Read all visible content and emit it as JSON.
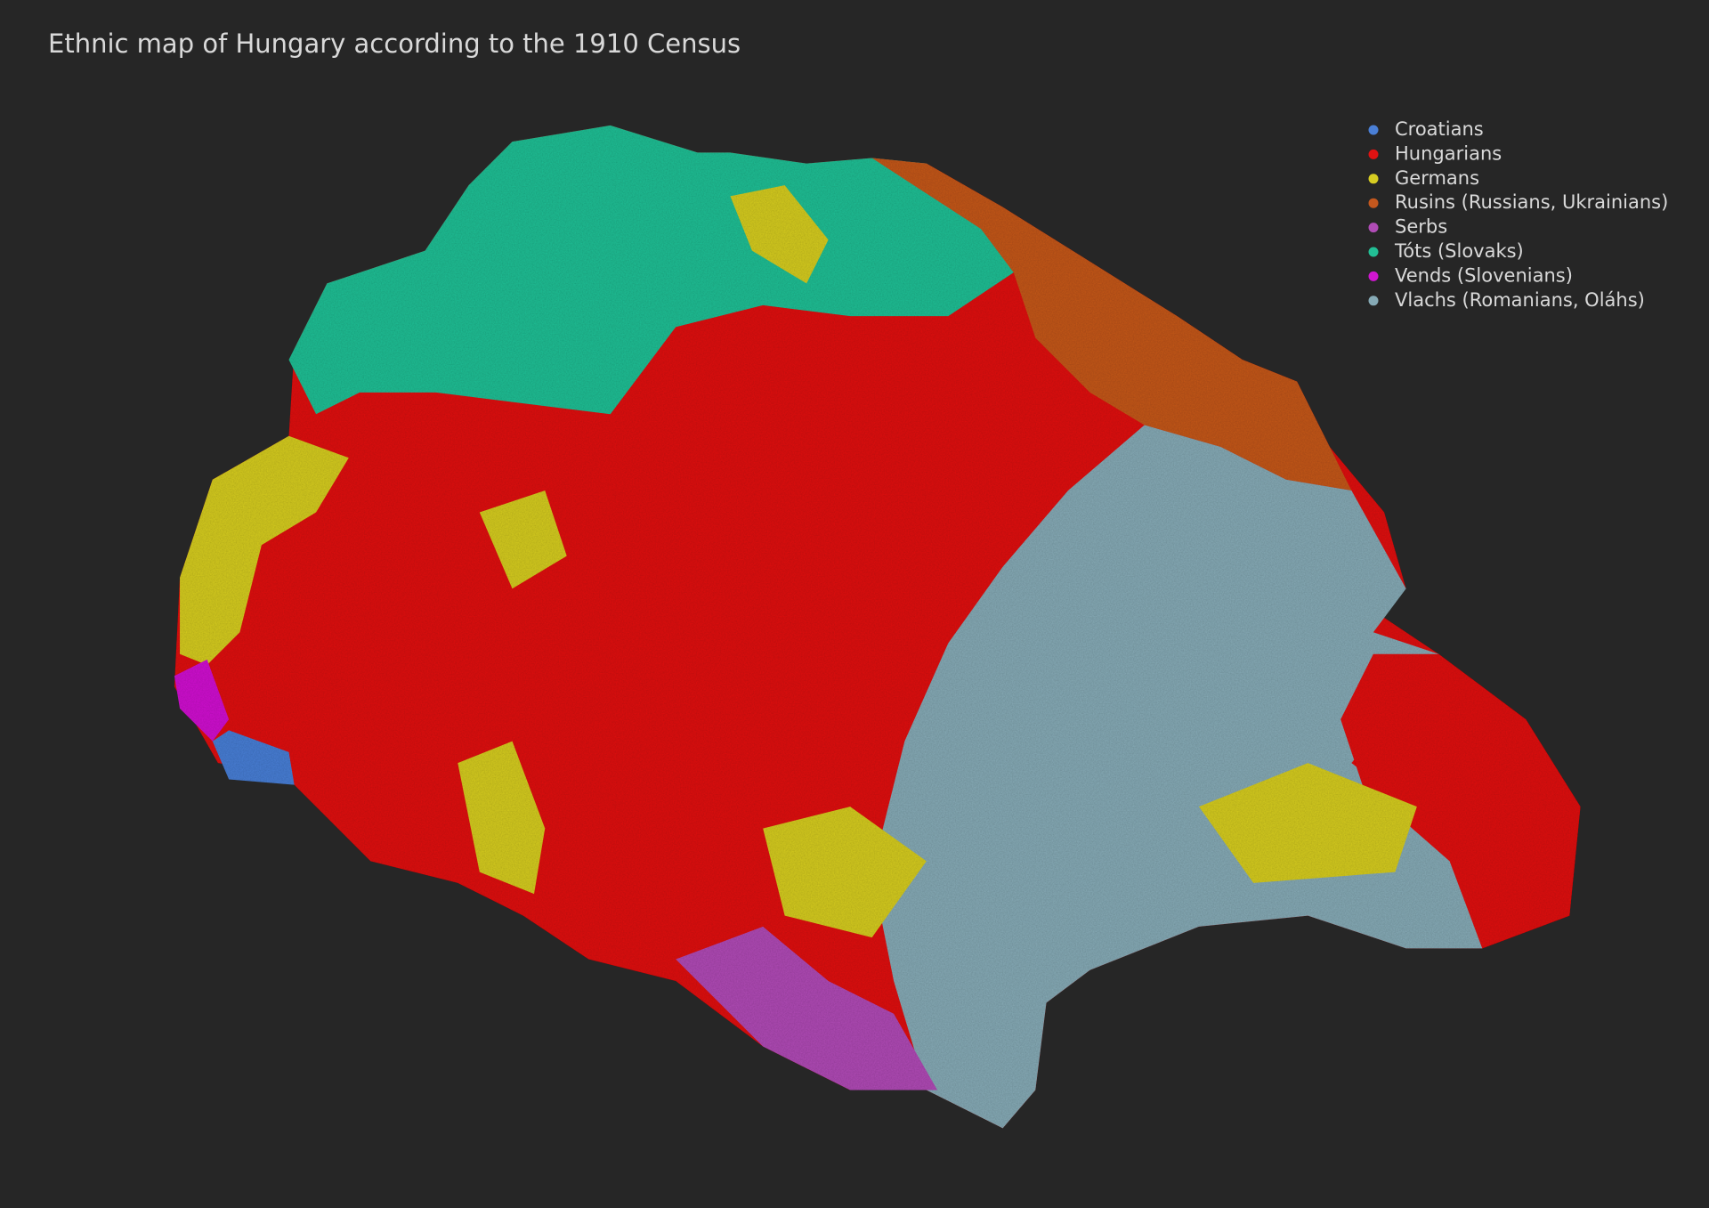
{
  "title": "Ethnic map of Hungary according to the 1910 Census",
  "legend": [
    {
      "label": "Croatians",
      "color": "#4a7fd6"
    },
    {
      "label": "Hungarians",
      "color": "#e01212"
    },
    {
      "label": "Germans",
      "color": "#d6cc22"
    },
    {
      "label": "Rusins (Russians, Ukrainians)",
      "color": "#c4581e"
    },
    {
      "label": "Serbs",
      "color": "#b04cb6"
    },
    {
      "label": "Tóts (Slovaks)",
      "color": "#22bf95"
    },
    {
      "label": "Vends (Slovenians)",
      "color": "#d016d0"
    },
    {
      "label": "Vlachs (Romanians, Oláhs)",
      "color": "#86aab6"
    }
  ]
}
